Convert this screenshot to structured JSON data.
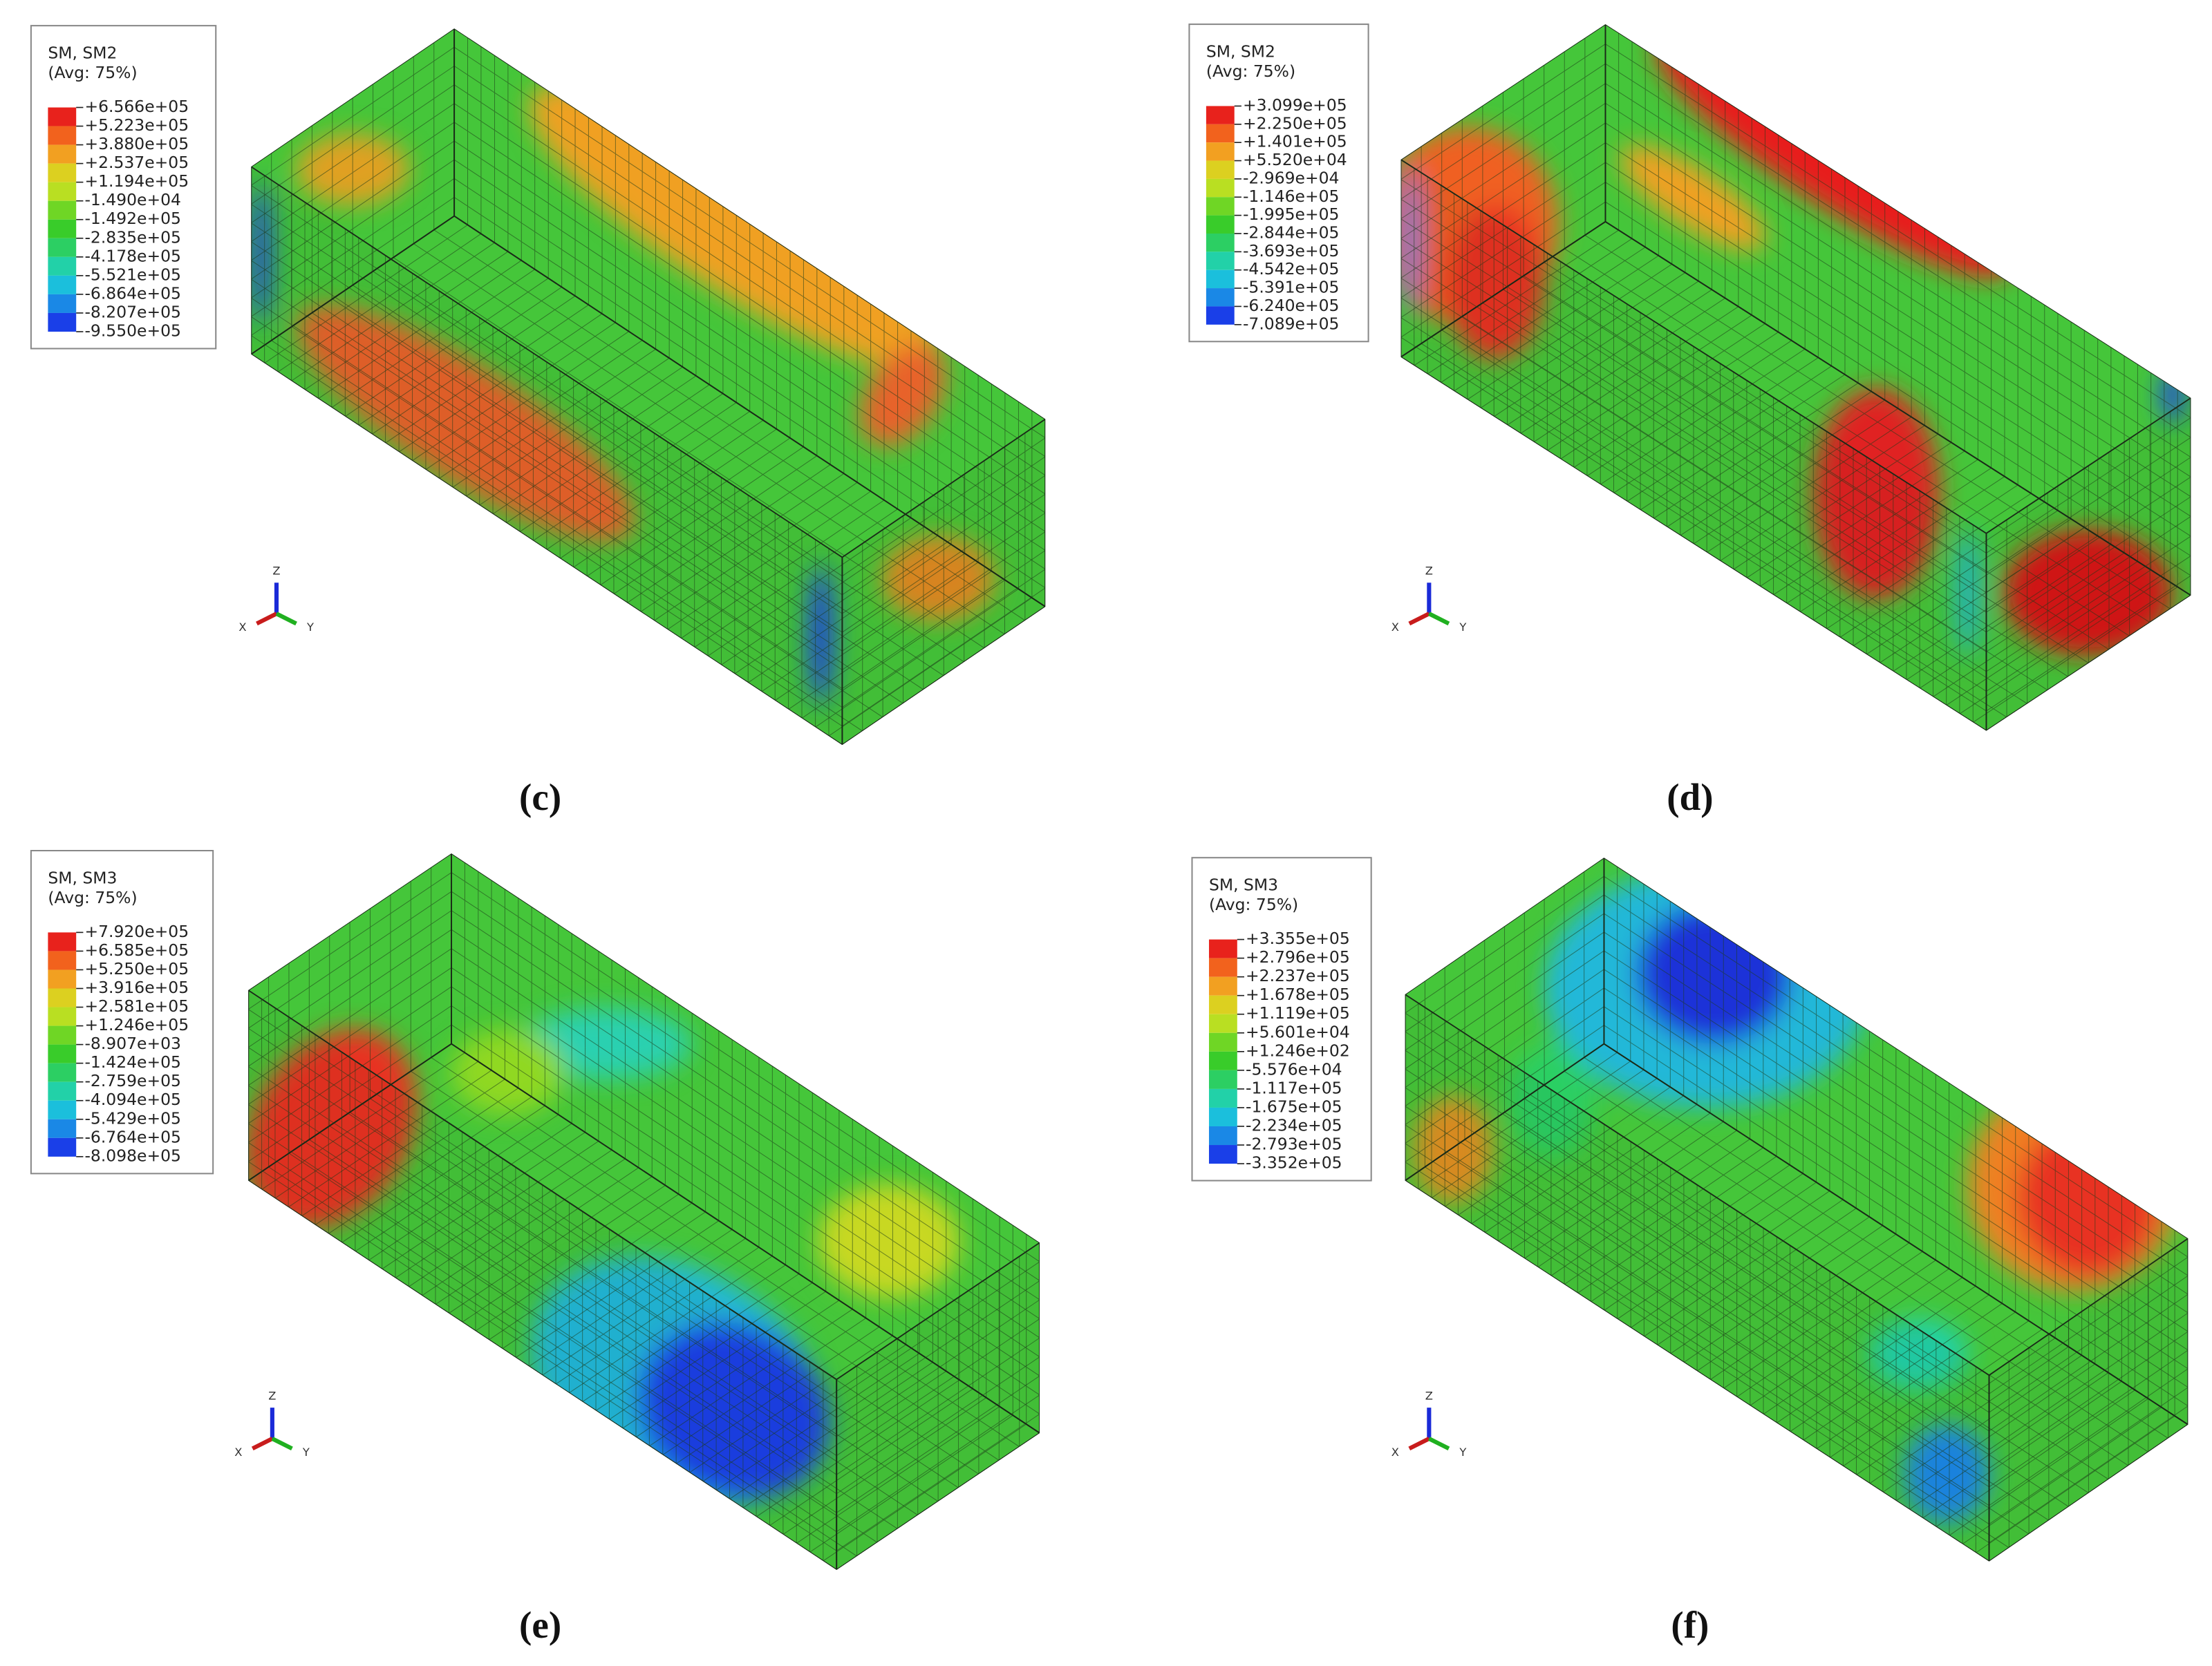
{
  "panels": [
    {
      "legend": {
        "title": [
          "SM, SM2",
          "(Avg: 75%)"
        ],
        "labels": [
          "+6.566e+05",
          "+5.223e+05",
          "+3.880e+05",
          "+2.537e+05",
          "+1.194e+05",
          "-1.490e+04",
          "-1.492e+05",
          "-2.835e+05",
          "-4.178e+05",
          "-5.521e+05",
          "-6.864e+05",
          "-8.207e+05",
          "-9.550e+05"
        ]
      },
      "triad": {
        "z": "Z",
        "x": "X",
        "y": "Y"
      },
      "caption": "(c)"
    },
    {
      "legend": {
        "title": [
          "SM, SM2",
          "(Avg: 75%)"
        ],
        "labels": [
          "+3.099e+05",
          "+2.250e+05",
          "+1.401e+05",
          "+5.520e+04",
          "-2.969e+04",
          "-1.146e+05",
          "-1.995e+05",
          "-2.844e+05",
          "-3.693e+05",
          "-4.542e+05",
          "-5.391e+05",
          "-6.240e+05",
          "-7.089e+05"
        ]
      },
      "triad": {
        "z": "Z",
        "x": "X",
        "y": "Y"
      },
      "caption": "(d)"
    },
    {
      "legend": {
        "title": [
          "SM, SM3",
          "(Avg: 75%)"
        ],
        "labels": [
          "+7.920e+05",
          "+6.585e+05",
          "+5.250e+05",
          "+3.916e+05",
          "+2.581e+05",
          "+1.246e+05",
          "-8.907e+03",
          "-1.424e+05",
          "-2.759e+05",
          "-4.094e+05",
          "-5.429e+05",
          "-6.764e+05",
          "-8.098e+05"
        ]
      },
      "triad": {
        "z": "Z",
        "x": "X",
        "y": "Y"
      },
      "caption": "(e)"
    },
    {
      "legend": {
        "title": [
          "SM, SM3",
          "(Avg: 75%)"
        ],
        "labels": [
          "+3.355e+05",
          "+2.796e+05",
          "+2.237e+05",
          "+1.678e+05",
          "+1.119e+05",
          "+5.601e+04",
          "+1.246e+02",
          "-5.576e+04",
          "-1.117e+05",
          "-1.675e+05",
          "-2.234e+05",
          "-2.793e+05",
          "-3.352e+05"
        ]
      },
      "triad": {
        "z": "Z",
        "x": "X",
        "y": "Y"
      },
      "caption": "(f)"
    }
  ]
}
